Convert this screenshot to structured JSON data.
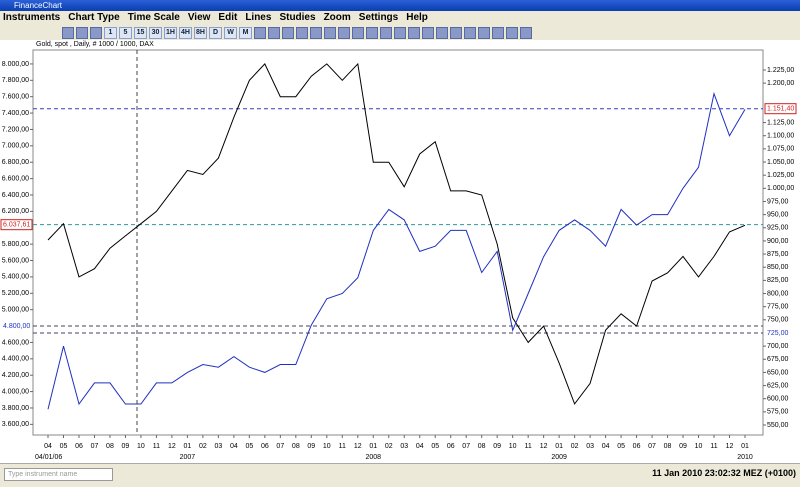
{
  "window_title": "FinanceChart",
  "menu": [
    "Instruments",
    "Chart Type",
    "Time Scale",
    "View",
    "Edit",
    "Lines",
    "Studies",
    "Zoom",
    "Settings",
    "Help"
  ],
  "toolbar": [
    "1",
    "5",
    "15",
    "30",
    "1H",
    "4H",
    "8H",
    "D",
    "W",
    "M"
  ],
  "chart_data": {
    "type": "line",
    "title": "Gold, spot , Daily, # 1000 / 1000, DAX",
    "categories": [
      "04",
      "05",
      "06",
      "07",
      "08",
      "09",
      "10",
      "11",
      "12",
      "01",
      "02",
      "03",
      "04",
      "05",
      "06",
      "07",
      "08",
      "09",
      "10",
      "11",
      "12",
      "01",
      "02",
      "03",
      "04",
      "05",
      "06",
      "07",
      "08",
      "09",
      "10",
      "11",
      "12",
      "01",
      "02",
      "03",
      "04",
      "05",
      "06",
      "07",
      "08",
      "09",
      "10",
      "11",
      "12",
      "01"
    ],
    "year_labels": [
      "04/01/06",
      "2007",
      "2008",
      "2009",
      "2010"
    ],
    "series": [
      {
        "name": "DAX",
        "color": "#000000",
        "axis": "y",
        "values": [
          5850,
          6050,
          5400,
          5500,
          5750,
          5900,
          6050,
          6200,
          6450,
          6700,
          6650,
          6850,
          7350,
          7800,
          8000,
          7600,
          7600,
          7850,
          8000,
          7800,
          8000,
          6800,
          6800,
          6500,
          6900,
          7050,
          6450,
          6450,
          6400,
          5800,
          4900,
          4600,
          4800,
          4350,
          3850,
          4100,
          4750,
          4950,
          4800,
          5350,
          5450,
          5650,
          5400,
          5650,
          5950,
          6030
        ]
      },
      {
        "name": "Gold, spot",
        "color": "#2030c0",
        "axis": "y2",
        "values": [
          580,
          700,
          590,
          630,
          630,
          590,
          590,
          630,
          630,
          650,
          665,
          660,
          680,
          660,
          650,
          665,
          665,
          740,
          790,
          800,
          830,
          920,
          960,
          940,
          880,
          890,
          920,
          920,
          840,
          880,
          730,
          800,
          870,
          920,
          940,
          920,
          890,
          960,
          930,
          950,
          950,
          1000,
          1040,
          1180,
          1100,
          1150
        ]
      }
    ],
    "ylim": [
      3470,
      8170
    ],
    "yticks": [
      {
        "value": 3600,
        "label": "3.600,00"
      },
      {
        "value": 3800,
        "label": "3.800,00"
      },
      {
        "value": 4000,
        "label": "4.000,00"
      },
      {
        "value": 4200,
        "label": "4.200,00"
      },
      {
        "value": 4400,
        "label": "4.400,00"
      },
      {
        "value": 4600,
        "label": "4.600,00"
      },
      {
        "value": 5000,
        "label": "5.000,00"
      },
      {
        "value": 5200,
        "label": "5.200,00"
      },
      {
        "value": 5400,
        "label": "5.400,00"
      },
      {
        "value": 5600,
        "label": "5.600,00"
      },
      {
        "value": 5800,
        "label": "5.800,00"
      },
      {
        "value": 6200,
        "label": "6.200,00"
      },
      {
        "value": 6400,
        "label": "6.400,00"
      },
      {
        "value": 6600,
        "label": "6.600,00"
      },
      {
        "value": 6800,
        "label": "6.800,00"
      },
      {
        "value": 7000,
        "label": "7.000,00"
      },
      {
        "value": 7200,
        "label": "7.200,00"
      },
      {
        "value": 7400,
        "label": "7.400,00"
      },
      {
        "value": 7600,
        "label": "7.600,00"
      },
      {
        "value": 7800,
        "label": "7.800,00"
      },
      {
        "value": 8000,
        "label": "8.000,00"
      }
    ],
    "y2lim": [
      531,
      1263
    ],
    "y2ticks": [
      {
        "value": 550,
        "label": "550,00"
      },
      {
        "value": 575,
        "label": "575,00"
      },
      {
        "value": 600,
        "label": "600,00"
      },
      {
        "value": 625,
        "label": "625,00"
      },
      {
        "value": 650,
        "label": "650,00"
      },
      {
        "value": 675,
        "label": "675,00"
      },
      {
        "value": 700,
        "label": "700,00"
      },
      {
        "value": 750,
        "label": "750,00"
      },
      {
        "value": 775,
        "label": "775,00"
      },
      {
        "value": 800,
        "label": "800,00"
      },
      {
        "value": 825,
        "label": "825,00"
      },
      {
        "value": 850,
        "label": "850,00"
      },
      {
        "value": 875,
        "label": "875,00"
      },
      {
        "value": 900,
        "label": "900,00"
      },
      {
        "value": 925,
        "label": "925,00"
      },
      {
        "value": 950,
        "label": "950,00"
      },
      {
        "value": 975,
        "label": "975,00"
      },
      {
        "value": 1000,
        "label": "1.000,00"
      },
      {
        "value": 1025,
        "label": "1.025,00"
      },
      {
        "value": 1050,
        "label": "1.050,00"
      },
      {
        "value": 1075,
        "label": "1.075,00"
      },
      {
        "value": 1100,
        "label": "1.100,00"
      },
      {
        "value": 1125,
        "label": "1.125,00"
      },
      {
        "value": 1200,
        "label": "1.200,00"
      },
      {
        "value": 1225,
        "label": "1.225,00"
      }
    ],
    "markers": [
      {
        "value": 6037.61,
        "label": "6.037,61",
        "axis": "y",
        "color": "#2a9a9a"
      },
      {
        "value": 4800,
        "label": "4.800,00",
        "axis": "y",
        "color": "#404060"
      },
      {
        "value": 1151.4,
        "label": "1.151,40",
        "axis": "y2",
        "color": "#3040c0"
      },
      {
        "value": 725,
        "label": "725,00",
        "axis": "y2",
        "color": "#404060"
      }
    ]
  },
  "status": {
    "placeholder": "Type instrument name",
    "time": "11 Jan 2010 23:02:32  MEZ (+0100)"
  }
}
